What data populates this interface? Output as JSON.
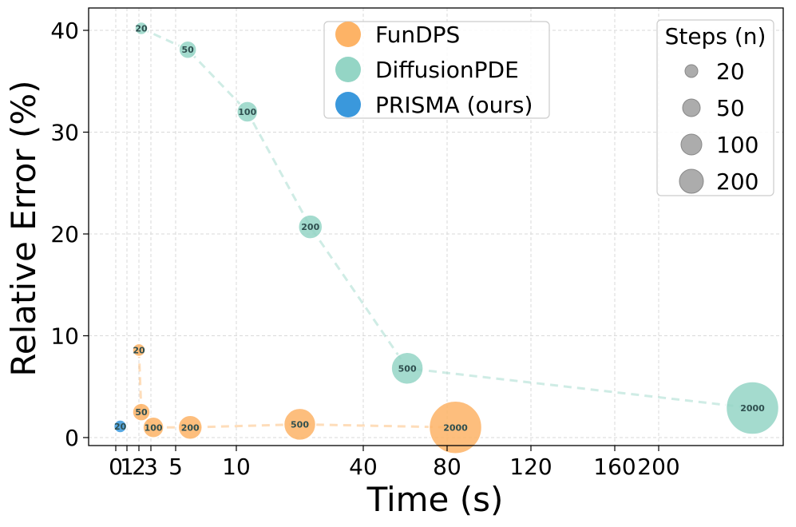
{
  "chart_data": {
    "type": "scatter",
    "title": "",
    "xlabel": "Time (s)",
    "ylabel": "Relative Error (%)",
    "x_ticks": [
      "0",
      "1",
      "2",
      "3",
      "5",
      "10",
      "40",
      "80",
      "120",
      "160",
      "200"
    ],
    "y_ticks": [
      "0",
      "10",
      "20",
      "30",
      "40"
    ],
    "ylim": [
      -1,
      42
    ],
    "grid": true,
    "series": [
      {
        "name": "FunDPS",
        "color": "#fdb366",
        "points": [
          {
            "x": 2,
            "y": 8.6,
            "steps": "20"
          },
          {
            "x": 2.2,
            "y": 2.5,
            "steps": "50"
          },
          {
            "x": 3.2,
            "y": 1.0,
            "steps": "100"
          },
          {
            "x": 6.2,
            "y": 1.0,
            "steps": "200"
          },
          {
            "x": 25,
            "y": 1.3,
            "steps": "500"
          },
          {
            "x": 84,
            "y": 1.0,
            "steps": "2000"
          }
        ]
      },
      {
        "name": "DiffusionPDE",
        "color": "#94d5c5",
        "points": [
          {
            "x": 2.2,
            "y": 40.2,
            "steps": "20"
          },
          {
            "x": 6.0,
            "y": 38.1,
            "steps": "50"
          },
          {
            "x": 12.6,
            "y": 32.0,
            "steps": "100"
          },
          {
            "x": 27.5,
            "y": 20.7,
            "steps": "200"
          },
          {
            "x": 61,
            "y": 6.8,
            "steps": "500"
          },
          {
            "x": 247,
            "y": 2.9,
            "steps": "2000"
          }
        ]
      },
      {
        "name": "PRISMA (ours)",
        "color": "#3a98dc",
        "points": [
          {
            "x": 0.4,
            "y": 1.1,
            "steps": "20"
          }
        ]
      }
    ],
    "size_legend": {
      "title": "Steps (n)",
      "entries": [
        "20",
        "50",
        "100",
        "200"
      ]
    },
    "legend_position": "top-center"
  }
}
